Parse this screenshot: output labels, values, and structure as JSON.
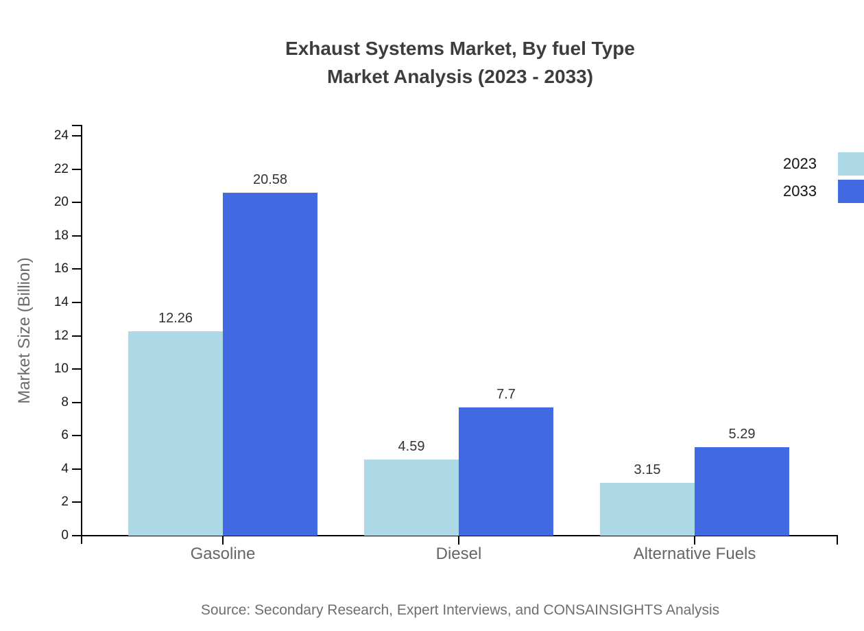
{
  "chart_data": {
    "type": "bar",
    "title_line1": "Exhaust Systems Market, By fuel Type",
    "title_line2": "Market Analysis (2023 - 2033)",
    "categories": [
      "Gasoline",
      "Diesel",
      "Alternative Fuels"
    ],
    "series": [
      {
        "name": "2023",
        "color": "#ADD8E6",
        "values": [
          12.26,
          4.59,
          3.15
        ]
      },
      {
        "name": "2033",
        "color": "#4169E1",
        "values": [
          20.58,
          7.7,
          5.29
        ]
      }
    ],
    "ylabel": "Market Size (Billion)",
    "xlabel": "",
    "ylim": [
      0,
      24
    ],
    "yticks": [
      0,
      2,
      4,
      6,
      8,
      10,
      12,
      14,
      16,
      18,
      20,
      22,
      24
    ],
    "grid": false,
    "legend_position": "top-right",
    "bar_label_color": "#333333",
    "axis_color": "#000000",
    "source": "Source: Secondary Research, Expert Interviews, and CONSAINSIGHTS Analysis"
  }
}
